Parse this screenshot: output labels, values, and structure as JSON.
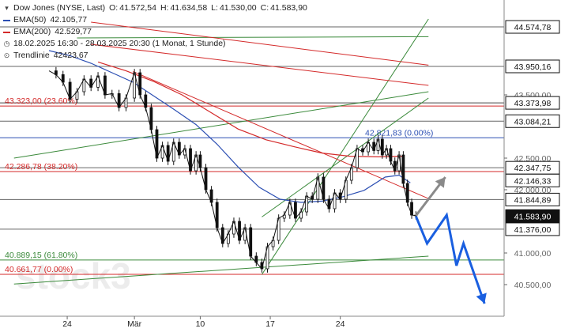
{
  "chart_data": {
    "type": "candlestick",
    "title": "Dow Jones (NYSE, Last)",
    "ohlc": {
      "O": "41.572,54",
      "H": "41.634,58",
      "L": "41.530,00",
      "C": "41.583,90"
    },
    "legend": {
      "ema50": {
        "label": "EMA(50)",
        "value": "42.105,77",
        "color": "#2c4fb3"
      },
      "ema200": {
        "label": "EMA(200)",
        "value": "42.529,77",
        "color": "#d42a2a"
      },
      "period": "18.02.2025 16:30 - 28.03.2025 20:30  (1 Monat, 1 Stunde)",
      "trendline": {
        "label": "Trendlinie",
        "value": "42423.67"
      }
    },
    "ylim": [
      40000,
      45000
    ],
    "x_ticks": [
      {
        "label": "24",
        "day": 3.8
      },
      {
        "label": "Mär",
        "day": 8.6
      },
      {
        "label": "10",
        "day": 13.3
      },
      {
        "label": "17",
        "day": 18.3
      },
      {
        "label": "24",
        "day": 23.3
      }
    ],
    "y_axis_labels": [
      {
        "text": "44.574,78",
        "value": 44574.78,
        "style": "box"
      },
      {
        "text": "43.950,16",
        "value": 43950.16,
        "style": "box"
      },
      {
        "text": "43.500,00",
        "value": 43500,
        "style": "plain"
      },
      {
        "text": "43.373,98",
        "value": 43373.98,
        "style": "box"
      },
      {
        "text": "43.084,21",
        "value": 43084.21,
        "style": "box"
      },
      {
        "text": "42.500,00",
        "value": 42500,
        "style": "plain"
      },
      {
        "text": "42.347,75",
        "value": 42347.75,
        "style": "box"
      },
      {
        "text": "42.146,33",
        "value": 42146.33,
        "style": "box"
      },
      {
        "text": "42.000,00",
        "value": 42000,
        "style": "plain"
      },
      {
        "text": "41.844,89",
        "value": 41844.89,
        "style": "box"
      },
      {
        "text": "41.583,90",
        "value": 41583.9,
        "style": "dark"
      },
      {
        "text": "41.376,00",
        "value": 41376,
        "style": "box"
      },
      {
        "text": "41.000,00",
        "value": 41000,
        "style": "plain"
      },
      {
        "text": "40.500,00",
        "value": 40500,
        "style": "plain"
      }
    ],
    "horizontal_levels": [
      {
        "value": 44574.78,
        "color": "#666666",
        "label": ""
      },
      {
        "value": 43950.16,
        "color": "#666666",
        "label": ""
      },
      {
        "value": 43373.98,
        "color": "#444444",
        "label": ""
      },
      {
        "value": 43323.0,
        "color": "#d42a2a",
        "label": "43.323,00 (23.60%)"
      },
      {
        "value": 43084.21,
        "color": "#666666",
        "label": ""
      },
      {
        "value": 42821.83,
        "color": "#2c4fb3",
        "label": "42.821,83 (0.00%)"
      },
      {
        "value": 42347.75,
        "color": "#666666",
        "label": ""
      },
      {
        "value": 42286.78,
        "color": "#d42a2a",
        "label": "42.286,78 (38.20%)"
      },
      {
        "value": 41844.89,
        "color": "#666666",
        "label": ""
      },
      {
        "value": 41376.0,
        "color": "#666666",
        "label": ""
      },
      {
        "value": 40889.15,
        "color": "#3b8a3b",
        "label": "40.889,15 (61.80%)"
      },
      {
        "value": 40661.77,
        "color": "#d42a2a",
        "label": "40.661,77 (0.00%)"
      }
    ],
    "trendlines": [
      {
        "color": "#3b8a3b",
        "points": [
          [
            0,
            42500
          ],
          [
            29.6,
            43550
          ]
        ]
      },
      {
        "color": "#3b8a3b",
        "points": [
          [
            0,
            40510
          ],
          [
            29.6,
            40950
          ]
        ]
      },
      {
        "color": "#3b8a3b",
        "points": [
          [
            17.7,
            40660
          ],
          [
            29.6,
            44700
          ]
        ]
      },
      {
        "color": "#3b8a3b",
        "points": [
          [
            17.7,
            41570
          ],
          [
            29.6,
            43450
          ]
        ]
      },
      {
        "color": "#3b8a3b",
        "points": [
          [
            4.5,
            44400
          ],
          [
            29.6,
            44420
          ]
        ]
      },
      {
        "color": "#d42a2a",
        "points": [
          [
            5.5,
            44650
          ],
          [
            29.6,
            43970
          ]
        ]
      },
      {
        "color": "#d42a2a",
        "points": [
          [
            5.5,
            44300
          ],
          [
            29.6,
            43650
          ]
        ]
      },
      {
        "color": "#d42a2a",
        "points": [
          [
            8.5,
            43870
          ],
          [
            29.6,
            41860
          ]
        ]
      }
    ],
    "price": [
      [
        2.5,
        43880
      ],
      [
        3.0,
        43820
      ],
      [
        3.5,
        43700
      ],
      [
        4.0,
        43430
      ],
      [
        4.5,
        43550
      ],
      [
        5.0,
        43750
      ],
      [
        5.5,
        43620
      ],
      [
        6.0,
        43800
      ],
      [
        6.5,
        43500
      ],
      [
        7.0,
        43520
      ],
      [
        7.5,
        43300
      ],
      [
        8.0,
        43450
      ],
      [
        8.6,
        43850
      ],
      [
        9.0,
        43500
      ],
      [
        9.4,
        43300
      ],
      [
        9.8,
        42950
      ],
      [
        10.2,
        42500
      ],
      [
        10.6,
        42700
      ],
      [
        11.0,
        42450
      ],
      [
        11.4,
        42750
      ],
      [
        11.8,
        42550
      ],
      [
        12.2,
        42650
      ],
      [
        12.6,
        42300
      ],
      [
        13.0,
        42550
      ],
      [
        13.3,
        42350
      ],
      [
        13.7,
        42000
      ],
      [
        14.1,
        41800
      ],
      [
        14.5,
        41400
      ],
      [
        14.9,
        41150
      ],
      [
        15.3,
        41300
      ],
      [
        15.7,
        41500
      ],
      [
        16.1,
        41200
      ],
      [
        16.5,
        41400
      ],
      [
        16.9,
        40950
      ],
      [
        17.3,
        40850
      ],
      [
        17.7,
        40750
      ],
      [
        18.1,
        41100
      ],
      [
        18.5,
        41200
      ],
      [
        18.9,
        41550
      ],
      [
        19.3,
        41600
      ],
      [
        19.7,
        41800
      ],
      [
        20.1,
        41550
      ],
      [
        20.5,
        41650
      ],
      [
        20.9,
        41900
      ],
      [
        21.3,
        41850
      ],
      [
        21.7,
        42200
      ],
      [
        22.1,
        41850
      ],
      [
        22.5,
        41700
      ],
      [
        22.9,
        41950
      ],
      [
        23.3,
        41850
      ],
      [
        23.7,
        42150
      ],
      [
        24.1,
        42350
      ],
      [
        24.5,
        42650
      ],
      [
        24.9,
        42600
      ],
      [
        25.3,
        42750
      ],
      [
        25.7,
        42620
      ],
      [
        26.0,
        42800
      ],
      [
        26.3,
        42550
      ],
      [
        26.6,
        42650
      ],
      [
        26.9,
        42450
      ],
      [
        27.2,
        42300
      ],
      [
        27.5,
        42550
      ],
      [
        27.8,
        42100
      ],
      [
        28.1,
        41800
      ],
      [
        28.4,
        41600
      ],
      [
        28.7,
        41590
      ]
    ],
    "ema50": [
      [
        2.5,
        44200
      ],
      [
        4.0,
        44120
      ],
      [
        5.5,
        44000
      ],
      [
        7.0,
        43850
      ],
      [
        8.5,
        43700
      ],
      [
        10.0,
        43480
      ],
      [
        11.5,
        43260
      ],
      [
        13.0,
        43030
      ],
      [
        14.5,
        42720
      ],
      [
        16.0,
        42360
      ],
      [
        17.5,
        42040
      ],
      [
        19.0,
        41850
      ],
      [
        20.5,
        41800
      ],
      [
        22.0,
        41820
      ],
      [
        23.5,
        41890
      ],
      [
        25.0,
        41990
      ],
      [
        26.5,
        42200
      ],
      [
        27.5,
        42230
      ],
      [
        28.3,
        42110
      ]
    ],
    "ema200": [
      [
        6.0,
        44020
      ],
      [
        8.0,
        43880
      ],
      [
        10.0,
        43710
      ],
      [
        12.0,
        43500
      ],
      [
        14.0,
        43230
      ],
      [
        16.0,
        42960
      ],
      [
        18.0,
        42790
      ],
      [
        20.0,
        42680
      ],
      [
        22.0,
        42580
      ],
      [
        24.0,
        42530
      ],
      [
        26.0,
        42520
      ],
      [
        27.8,
        42530
      ]
    ],
    "scenario_up": {
      "color": "#8a8a8a",
      "points": [
        [
          28.7,
          41590
        ],
        [
          30.8,
          42200
        ]
      ]
    },
    "scenario_down": {
      "color": "#1a5fe0",
      "points": [
        [
          28.7,
          41580
        ],
        [
          29.5,
          41150
        ],
        [
          30.9,
          41600
        ],
        [
          31.6,
          40800
        ],
        [
          32.1,
          41150
        ],
        [
          33.6,
          40200
        ]
      ]
    },
    "watermark": "stock3"
  }
}
